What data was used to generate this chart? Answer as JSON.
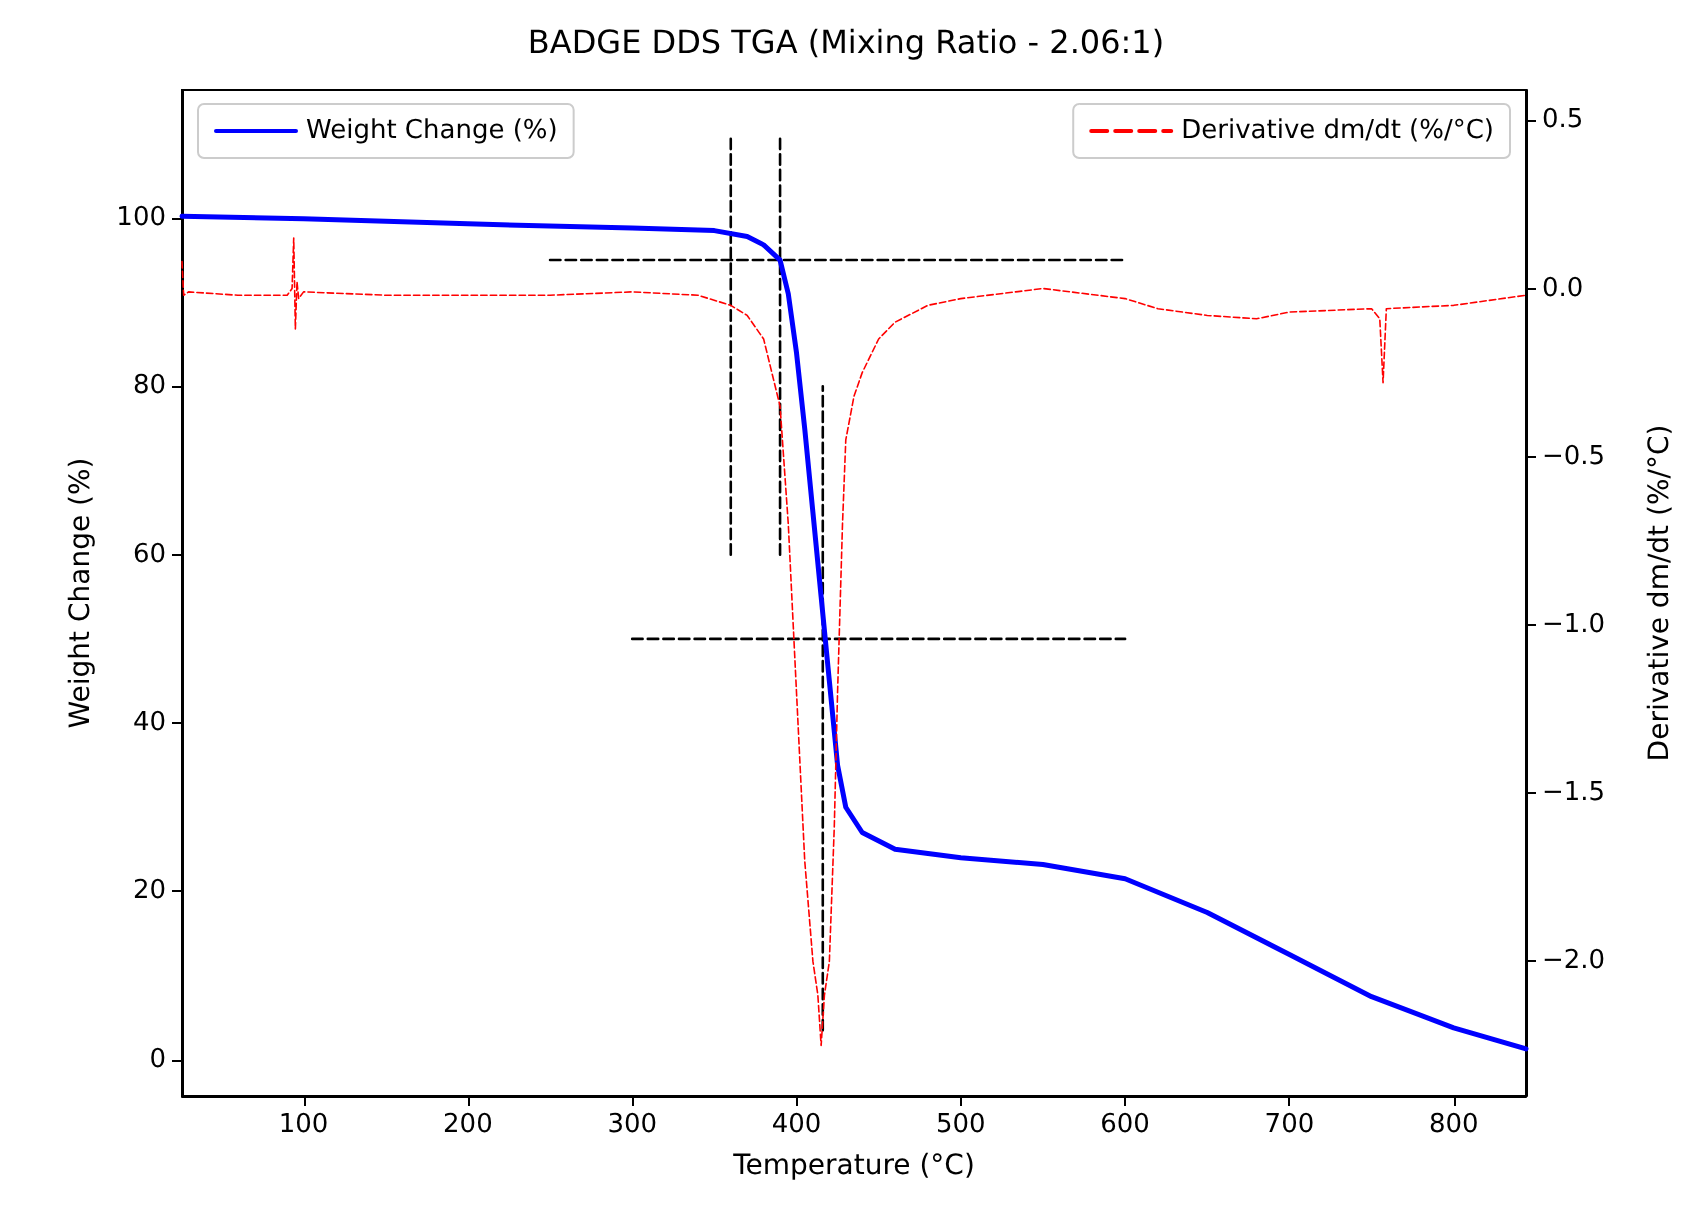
{
  "chart_data": {
    "type": "line",
    "title": "BADGE DDS TGA (Mixing Ratio - 2.06:1)",
    "xlabel": "Temperature (°C)",
    "ylabel": "Weight Change (%)",
    "y2label": "Derivative dm/dt (%/°C)",
    "xlim": [
      26,
      844
    ],
    "xticks": [
      100,
      200,
      300,
      400,
      500,
      600,
      700,
      800
    ],
    "ylim": [
      -4.3,
      115.2
    ],
    "yticks": [
      0,
      20,
      40,
      60,
      80,
      100
    ],
    "y2lim": [
      -2.4,
      0.59
    ],
    "y2ticks": [
      {
        "value": -2,
        "label": "−2.0"
      },
      {
        "value": -1.5,
        "label": "−1.5"
      },
      {
        "value": -1,
        "label": "−1.0"
      },
      {
        "value": -0.5,
        "label": "−0.5"
      },
      {
        "value": 0,
        "label": "0.0"
      },
      {
        "value": 0.5,
        "label": "0.5"
      }
    ],
    "grid": false,
    "legend": "top",
    "marker": "none",
    "series": [
      {
        "name": "Weight Change (%)",
        "color": "#0000ff",
        "line_style": "solid",
        "x": [
          26,
          100,
          200,
          300,
          350,
          370,
          380,
          390,
          395,
          400,
          405,
          410,
          415,
          420,
          425,
          430,
          440,
          460,
          500,
          550,
          600,
          650,
          700,
          750,
          800,
          844
        ],
        "values": [
          100.2,
          99.9,
          99.3,
          98.8,
          98.5,
          97.8,
          96.8,
          95,
          91,
          84,
          75,
          65,
          55,
          45,
          35,
          30,
          27,
          25,
          24,
          23.2,
          21.5,
          17.5,
          12.5,
          7.5,
          3.8,
          1.3
        ]
      },
      {
        "name": "Derivative dm/dt (%/°C)",
        "color": "#ff0000",
        "axis": "y2",
        "line_style": "dashed",
        "x": [
          26,
          27,
          30,
          60,
          90,
          93,
          94,
          95,
          96,
          97,
          100,
          150,
          200,
          250,
          300,
          340,
          360,
          370,
          380,
          390,
          395,
          400,
          405,
          410,
          413,
          415,
          417,
          420,
          423,
          425,
          428,
          430,
          435,
          440,
          450,
          460,
          480,
          500,
          550,
          600,
          620,
          650,
          680,
          700,
          750,
          755,
          757,
          759,
          800,
          844
        ],
        "values": [
          0.08,
          -0.02,
          -0.01,
          -0.02,
          -0.02,
          0.0,
          0.15,
          -0.12,
          0.02,
          -0.03,
          -0.01,
          -0.02,
          -0.02,
          -0.02,
          -0.01,
          -0.02,
          -0.05,
          -0.08,
          -0.15,
          -0.35,
          -0.7,
          -1.2,
          -1.7,
          -2.0,
          -2.1,
          -2.25,
          -2.1,
          -2.0,
          -1.6,
          -1.2,
          -0.7,
          -0.45,
          -0.32,
          -0.25,
          -0.15,
          -0.1,
          -0.05,
          -0.03,
          0.0,
          -0.03,
          -0.06,
          -0.08,
          -0.09,
          -0.07,
          -0.06,
          -0.09,
          -0.28,
          -0.06,
          -0.05,
          -0.02
        ]
      },
      {
        "color": "#000000",
        "line_style": "dashed",
        "x": [
          360,
          360
        ],
        "values": [
          60,
          110
        ]
      },
      {
        "color": "#000000",
        "line_style": "dashed",
        "x": [
          390,
          390
        ],
        "values": [
          60,
          110
        ]
      },
      {
        "color": "#000000",
        "line_style": "dashed",
        "x": [
          416,
          416
        ],
        "values": [
          3.5,
          80
        ]
      },
      {
        "color": "#000000",
        "line_style": "dashed",
        "x": [
          250,
          600
        ],
        "values": [
          95,
          95
        ]
      },
      {
        "color": "#000000",
        "line_style": "dashed",
        "x": [
          300,
          600
        ],
        "values": [
          50,
          50
        ]
      }
    ]
  }
}
